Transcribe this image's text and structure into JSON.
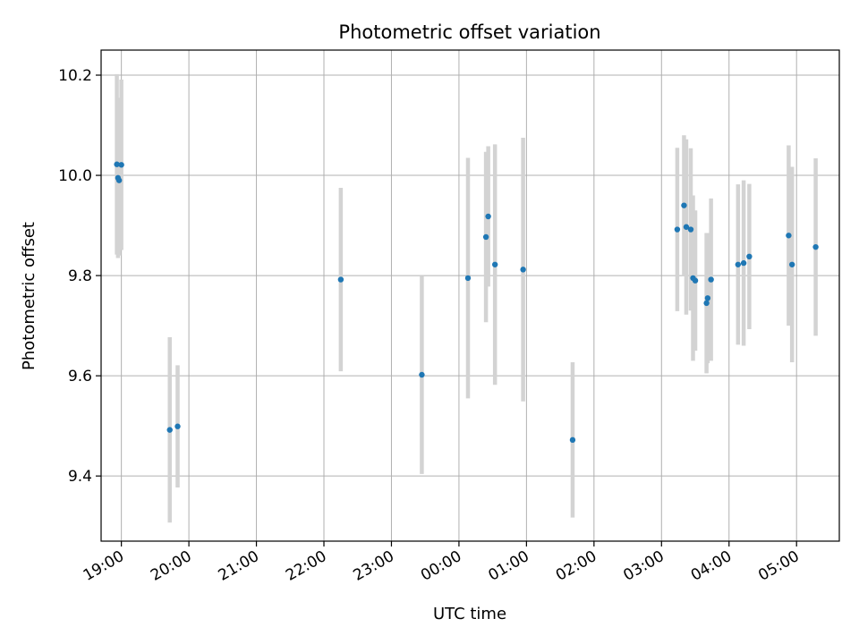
{
  "chart_data": {
    "type": "scatter",
    "title": "Photometric offset variation",
    "xlabel": "UTC time",
    "ylabel": "Photometric offset",
    "xlim": [
      "18:42",
      "29:38"
    ],
    "ylim": [
      9.27,
      10.25
    ],
    "x_ticks": [
      "19:00",
      "20:00",
      "21:00",
      "22:00",
      "23:00",
      "00:00",
      "01:00",
      "02:00",
      "03:00",
      "04:00",
      "05:00"
    ],
    "y_ticks": [
      "9.4",
      "9.6",
      "9.8",
      "10.0",
      "10.2"
    ],
    "grid": true,
    "series": [
      {
        "marker_color": "#1f77b4",
        "errorbar_color": "#d3d3d3",
        "points": [
          {
            "x": "18:56",
            "y": 10.022,
            "err": 0.18
          },
          {
            "x": "18:57",
            "y": 9.995,
            "err": 0.16
          },
          {
            "x": "18:58",
            "y": 9.99,
            "err": 0.15
          },
          {
            "x": "19:00",
            "y": 10.021,
            "err": 0.17
          },
          {
            "x": "19:43",
            "y": 9.492,
            "err": 0.185
          },
          {
            "x": "19:50",
            "y": 9.499,
            "err": 0.122
          },
          {
            "x": "22:15",
            "y": 9.792,
            "err": 0.183
          },
          {
            "x": "23:27",
            "y": 9.602,
            "err": 0.198
          },
          {
            "x": "00:08",
            "y": 9.795,
            "err": 0.24
          },
          {
            "x": "00:24",
            "y": 9.877,
            "err": 0.17
          },
          {
            "x": "00:26",
            "y": 9.918,
            "err": 0.14
          },
          {
            "x": "00:32",
            "y": 9.822,
            "err": 0.24
          },
          {
            "x": "00:57",
            "y": 9.812,
            "err": 0.263
          },
          {
            "x": "01:41",
            "y": 9.472,
            "err": 0.155
          },
          {
            "x": "03:14",
            "y": 9.892,
            "err": 0.163
          },
          {
            "x": "03:20",
            "y": 9.94,
            "err": 0.14
          },
          {
            "x": "03:22",
            "y": 9.897,
            "err": 0.175
          },
          {
            "x": "03:26",
            "y": 9.892,
            "err": 0.162
          },
          {
            "x": "03:28",
            "y": 9.795,
            "err": 0.165
          },
          {
            "x": "03:30",
            "y": 9.79,
            "err": 0.14
          },
          {
            "x": "03:40",
            "y": 9.745,
            "err": 0.14
          },
          {
            "x": "03:41",
            "y": 9.755,
            "err": 0.13
          },
          {
            "x": "03:44",
            "y": 9.792,
            "err": 0.162
          },
          {
            "x": "04:08",
            "y": 9.822,
            "err": 0.16
          },
          {
            "x": "04:13",
            "y": 9.825,
            "err": 0.165
          },
          {
            "x": "04:18",
            "y": 9.838,
            "err": 0.145
          },
          {
            "x": "04:53",
            "y": 9.88,
            "err": 0.18
          },
          {
            "x": "04:56",
            "y": 9.822,
            "err": 0.195
          },
          {
            "x": "05:17",
            "y": 9.857,
            "err": 0.177
          }
        ]
      }
    ]
  }
}
